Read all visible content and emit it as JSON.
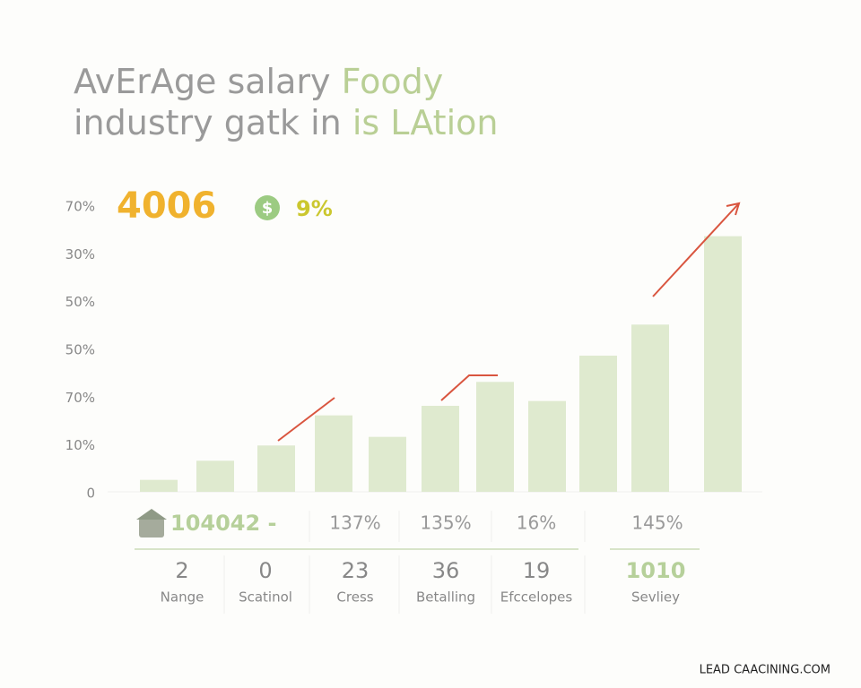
{
  "chart_data": {
    "type": "bar",
    "title": [
      [
        "AvErAge salary",
        "Foody"
      ],
      [
        "industry gatk in",
        "is LAtion"
      ]
    ],
    "headline": {
      "value_text": "4006",
      "icon": "$",
      "change": "9%"
    },
    "categories": [
      null,
      null,
      null,
      null,
      null,
      null,
      null,
      null,
      null,
      null,
      null
    ],
    "values": [
      0.25,
      0.65,
      0.97,
      1.6,
      1.15,
      1.8,
      2.3,
      1.9,
      2.85,
      3.5,
      5.35
    ],
    "color": "#dfeacf",
    "ylim": [
      0,
      6
    ],
    "yticks": [
      {
        "value": 0,
        "label": "0"
      },
      {
        "value": 1,
        "label": "10%"
      },
      {
        "value": 2,
        "label": "70%"
      },
      {
        "value": 3,
        "label": "50%"
      },
      {
        "value": 4,
        "label": "50%"
      },
      {
        "value": 5,
        "label": "30%"
      },
      {
        "value": 6,
        "label": "70%"
      }
    ],
    "grid": false
  },
  "table": {
    "summary": [
      "104042 -",
      "137%",
      "135%",
      "16%",
      "145%"
    ],
    "numbers": [
      "2",
      "0",
      "23",
      "36",
      "19",
      "1010"
    ],
    "labels": [
      "Nange",
      "Scatinol",
      "Cress",
      "Betalling",
      "Efccelopes",
      "Sevliey"
    ]
  },
  "footer": "LEAD CAACINING.COM"
}
